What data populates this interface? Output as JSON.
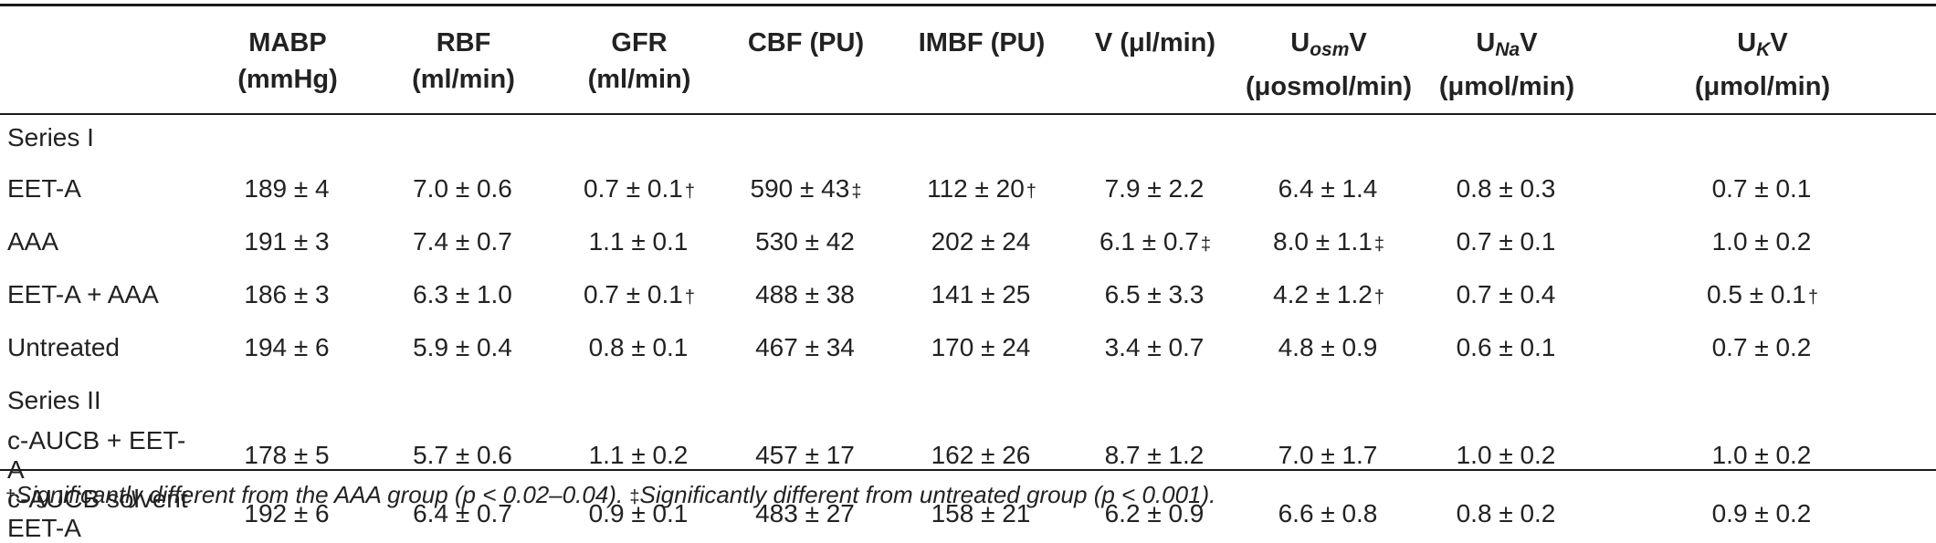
{
  "headers": [
    {
      "line1": "",
      "line2": ""
    },
    {
      "line1": "MABP",
      "line2": "(mmHg)"
    },
    {
      "line1": "RBF",
      "line2": "(ml/min)"
    },
    {
      "line1": "GFR",
      "line2": "(ml/min)"
    },
    {
      "line1": "CBF (PU)",
      "line2": ""
    },
    {
      "line1": "IMBF (PU)",
      "line2": ""
    },
    {
      "line1": "V (μl/min)",
      "line2": ""
    },
    {
      "line1_pre": "U",
      "line1_sub": "osm",
      "line1_post": "V",
      "line2": "(μosmol/min)"
    },
    {
      "line1_pre": "U",
      "line1_sub": "Na",
      "line1_post": "V",
      "line2": "(μmol/min)"
    },
    {
      "line1_pre": "U",
      "line1_sub": "K",
      "line1_post": "V",
      "line2": "(μmol/min)"
    }
  ],
  "sections": [
    {
      "title": "Series I",
      "rows": [
        {
          "label": "EET-A",
          "cells": [
            {
              "v": "189 ± 4",
              "m": ""
            },
            {
              "v": "7.0 ± 0.6",
              "m": ""
            },
            {
              "v": "0.7 ± 0.1",
              "m": "†"
            },
            {
              "v": "590 ± 43",
              "m": "‡"
            },
            {
              "v": "112 ± 20",
              "m": "†"
            },
            {
              "v": "7.9 ± 2.2",
              "m": ""
            },
            {
              "v": "6.4 ± 1.4",
              "m": ""
            },
            {
              "v": "0.8 ± 0.3",
              "m": ""
            },
            {
              "v": "0.7 ± 0.1",
              "m": ""
            }
          ]
        },
        {
          "label": "AAA",
          "cells": [
            {
              "v": "191 ± 3",
              "m": ""
            },
            {
              "v": "7.4 ± 0.7",
              "m": ""
            },
            {
              "v": "1.1 ± 0.1",
              "m": ""
            },
            {
              "v": "530 ± 42",
              "m": ""
            },
            {
              "v": "202 ± 24",
              "m": ""
            },
            {
              "v": "6.1 ± 0.7",
              "m": "‡"
            },
            {
              "v": "8.0 ± 1.1",
              "m": "‡"
            },
            {
              "v": "0.7 ± 0.1",
              "m": ""
            },
            {
              "v": "1.0 ± 0.2",
              "m": ""
            }
          ]
        },
        {
          "label": "EET-A + AAA",
          "cells": [
            {
              "v": "186 ± 3",
              "m": ""
            },
            {
              "v": "6.3 ± 1.0",
              "m": ""
            },
            {
              "v": "0.7 ± 0.1",
              "m": "†"
            },
            {
              "v": "488 ± 38",
              "m": ""
            },
            {
              "v": "141 ± 25",
              "m": ""
            },
            {
              "v": "6.5 ± 3.3",
              "m": ""
            },
            {
              "v": "4.2 ± 1.2",
              "m": "†"
            },
            {
              "v": "0.7 ± 0.4",
              "m": ""
            },
            {
              "v": "0.5 ± 0.1",
              "m": "†"
            }
          ]
        },
        {
          "label": "Untreated",
          "cells": [
            {
              "v": "194 ± 6",
              "m": ""
            },
            {
              "v": "5.9 ± 0.4",
              "m": ""
            },
            {
              "v": "0.8 ± 0.1",
              "m": ""
            },
            {
              "v": "467 ± 34",
              "m": ""
            },
            {
              "v": "170 ± 24",
              "m": ""
            },
            {
              "v": "3.4 ± 0.7",
              "m": ""
            },
            {
              "v": "4.8 ± 0.9",
              "m": ""
            },
            {
              "v": "0.6 ± 0.1",
              "m": ""
            },
            {
              "v": "0.7 ± 0.2",
              "m": ""
            }
          ]
        }
      ]
    },
    {
      "title": "Series II",
      "rows": [
        {
          "label": "c-AUCB + EET-A",
          "cells": [
            {
              "v": "178 ± 5",
              "m": ""
            },
            {
              "v": "5.7 ± 0.6",
              "m": ""
            },
            {
              "v": "1.1 ± 0.2",
              "m": ""
            },
            {
              "v": "457 ± 17",
              "m": ""
            },
            {
              "v": "162 ± 26",
              "m": ""
            },
            {
              "v": "8.7 ± 1.2",
              "m": ""
            },
            {
              "v": "7.0 ± 1.7",
              "m": ""
            },
            {
              "v": "1.0 ± 0.2",
              "m": ""
            },
            {
              "v": "1.0 ± 0.2",
              "m": ""
            }
          ]
        },
        {
          "label": "c-AUCB solvent EET-A",
          "cells": [
            {
              "v": "192 ± 6",
              "m": ""
            },
            {
              "v": "6.4 ± 0.7",
              "m": ""
            },
            {
              "v": "0.9 ± 0.1",
              "m": ""
            },
            {
              "v": "483 ± 27",
              "m": ""
            },
            {
              "v": "158 ± 21",
              "m": ""
            },
            {
              "v": "6.2 ± 0.9",
              "m": ""
            },
            {
              "v": "6.6 ± 0.8",
              "m": ""
            },
            {
              "v": "0.8 ± 0.2",
              "m": ""
            },
            {
              "v": "0.9 ± 0.2",
              "m": ""
            }
          ]
        }
      ]
    }
  ],
  "footnote": {
    "sym1": "†",
    "text1": "Significantly different from the AAA group (p < 0.02–0.04). ",
    "sym2": "‡",
    "text2": "Significantly different from untreated group (p < 0.001)."
  }
}
